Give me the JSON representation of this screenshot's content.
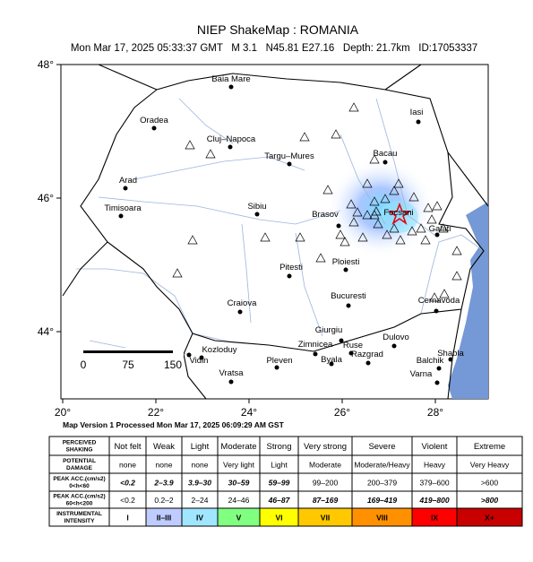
{
  "header": {
    "title": "NIEP ShakeMap : ROMANIA",
    "subtitle": "Mon Mar 17, 2025 05:33:37 GMT   M 3.1   N45.81 E27.16   Depth: 21.7km   ID:17053337"
  },
  "map": {
    "xticks": [
      {
        "value": 20,
        "label": "20°"
      },
      {
        "value": 22,
        "label": "22°"
      },
      {
        "value": 24,
        "label": "24°"
      },
      {
        "value": 26,
        "label": "26°"
      },
      {
        "value": 28,
        "label": "28°"
      }
    ],
    "yticks": [
      {
        "value": 48,
        "label": "48°"
      },
      {
        "value": 46,
        "label": "46°"
      },
      {
        "value": 44,
        "label": "44°"
      }
    ],
    "places": [
      "Baia Mare",
      "Iasi",
      "Oradea",
      "Cluj–Napoca",
      "Targu–Mures",
      "Bacau",
      "Arad",
      "Timisoara",
      "Sibiu",
      "Brasov",
      "Focsani",
      "Galati",
      "Ploiesti",
      "Pitesti",
      "Bucuresti",
      "Craiova",
      "Cernavoda",
      "Giurgiu",
      "Zimnicea",
      "Ruse",
      "Dulovo",
      "Kozloduy",
      "Vidin",
      "Shabla",
      "Pleven",
      "Byala",
      "Razgrad",
      "Balchik",
      "Vratsa",
      "Varna"
    ],
    "scale_bar": [
      0,
      75,
      150
    ]
  },
  "processed": "Map Version 1 Processed Mon Mar 17, 2025 06:09:29 AM GST",
  "legend": {
    "rows": [
      {
        "label": [
          "PERCEIVED",
          "SHAKING"
        ],
        "cells": [
          "Not felt",
          "Weak",
          "Light",
          "Moderate",
          "Strong",
          "Very strong",
          "Severe",
          "Violent",
          "Extreme"
        ]
      },
      {
        "label": [
          "POTENTIAL",
          "DAMAGE"
        ],
        "cells": [
          "none",
          "none",
          "none",
          "Very light",
          "Light",
          "Moderate",
          "Moderate/Heavy",
          "Heavy",
          "Very Heavy"
        ]
      },
      {
        "label": [
          "PEAK ACC.(cm/s2)",
          "0<h<60"
        ],
        "cells": [
          "<0.2",
          "2–3.9",
          "3.9–30",
          "30–59",
          "59–99",
          "99–200",
          "200–379",
          "379–600",
          ">600"
        ]
      },
      {
        "label": [
          "PEAK ACC.(cm/s2)",
          "60<h<200"
        ],
        "cells": [
          "<0.2",
          "0.2–2",
          "2–24",
          "24–46",
          "46–87",
          "87–169",
          "169–419",
          "419–800",
          ">800"
        ]
      },
      {
        "label": [
          "INSTRUMENTAL",
          "INTENSITY"
        ],
        "cells": [
          "I",
          "II–III",
          "IV",
          "V",
          "VI",
          "VII",
          "VIII",
          "IX",
          "X+"
        ]
      }
    ]
  }
}
